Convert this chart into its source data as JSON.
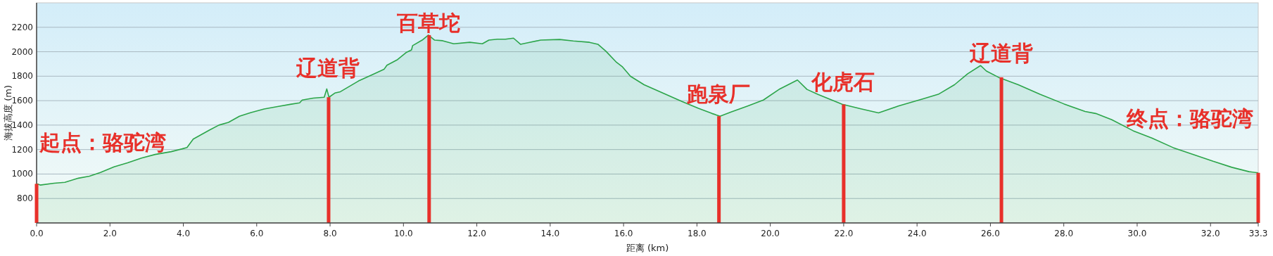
{
  "chart_data": {
    "type": "area",
    "xlabel": "距离 (km)",
    "ylabel": "海拔高度 (m)",
    "xlim": [
      0,
      33.3
    ],
    "ylim": [
      600,
      2400
    ],
    "xticks": [
      {
        "value": 0,
        "label": "0.0"
      },
      {
        "value": 2,
        "label": "2.0"
      },
      {
        "value": 4,
        "label": "4.0"
      },
      {
        "value": 6,
        "label": "6.0"
      },
      {
        "value": 8,
        "label": "8.0"
      },
      {
        "value": 10,
        "label": "10.0"
      },
      {
        "value": 12,
        "label": "12.0"
      },
      {
        "value": 14,
        "label": "14.0"
      },
      {
        "value": 16,
        "label": "16.0"
      },
      {
        "value": 18,
        "label": "18.0"
      },
      {
        "value": 20,
        "label": "20.0"
      },
      {
        "value": 22,
        "label": "22.0"
      },
      {
        "value": 24,
        "label": "24.0"
      },
      {
        "value": 26,
        "label": "26.0"
      },
      {
        "value": 28,
        "label": "28.0"
      },
      {
        "value": 30,
        "label": "30.0"
      },
      {
        "value": 32,
        "label": "32.0"
      },
      {
        "value": 33.3,
        "label": "33.3"
      }
    ],
    "yticks": [
      800,
      1000,
      1200,
      1400,
      1600,
      1800,
      2000,
      2200
    ],
    "grid": "y",
    "series": [
      {
        "color": "#2ca54a",
        "x": [
          0,
          0.1,
          0.48,
          0.77,
          1.14,
          1.44,
          1.74,
          2.11,
          2.48,
          2.86,
          3.23,
          3.67,
          3.97,
          4.1,
          4.27,
          4.71,
          4.97,
          5.23,
          5.53,
          5.83,
          6.2,
          6.57,
          6.94,
          7.17,
          7.24,
          7.54,
          7.84,
          7.91,
          7.97,
          8.13,
          8.28,
          8.8,
          9.17,
          9.47,
          9.55,
          9.84,
          10.07,
          10.22,
          10.25,
          10.51,
          10.68,
          10.85,
          11.07,
          11.37,
          11.81,
          12.15,
          12.33,
          12.56,
          12.78,
          13.0,
          13.19,
          13.37,
          13.74,
          14.26,
          14.63,
          15.07,
          15.3,
          15.52,
          15.81,
          15.96,
          16.19,
          16.56,
          17.07,
          17.59,
          18.04,
          18.41,
          18.63,
          18.93,
          19.37,
          19.81,
          20.26,
          20.74,
          21.0,
          21.3,
          21.96,
          22.47,
          22.95,
          23.49,
          24.15,
          24.58,
          25.02,
          25.38,
          25.73,
          25.89,
          26.22,
          26.76,
          27.35,
          28.0,
          28.58,
          28.87,
          29.31,
          29.89,
          30.4,
          30.98,
          31.49,
          32.07,
          32.58,
          33.05,
          33.3
        ],
        "values": [
          920,
          910,
          925,
          932,
          966,
          982,
          1012,
          1058,
          1092,
          1131,
          1160,
          1183,
          1206,
          1217,
          1286,
          1359,
          1400,
          1422,
          1473,
          1502,
          1532,
          1552,
          1571,
          1582,
          1605,
          1621,
          1628,
          1696,
          1628,
          1662,
          1673,
          1765,
          1815,
          1856,
          1890,
          1936,
          1993,
          2015,
          2050,
          2095,
          2136,
          2095,
          2090,
          2065,
          2077,
          2065,
          2095,
          2102,
          2102,
          2111,
          2061,
          2072,
          2095,
          2100,
          2088,
          2077,
          2061,
          2004,
          1913,
          1879,
          1799,
          1730,
          1662,
          1594,
          1537,
          1495,
          1473,
          1507,
          1555,
          1605,
          1696,
          1769,
          1692,
          1651,
          1571,
          1533,
          1500,
          1556,
          1614,
          1652,
          1730,
          1820,
          1887,
          1842,
          1791,
          1730,
          1652,
          1574,
          1511,
          1495,
          1444,
          1354,
          1294,
          1216,
          1164,
          1104,
          1055,
          1019,
          1010
        ]
      },
      {
        "type": "bar",
        "color": "#e8302a",
        "x": [
          0,
          7.96,
          10.7,
          18.6,
          22.0,
          26.3,
          33.3
        ],
        "values": [
          920,
          1628,
          2136,
          1473,
          1569,
          1791,
          1010
        ]
      }
    ],
    "annotations": [
      {
        "text": "起点：骆驼湾",
        "x": 0,
        "y": 920
      },
      {
        "text": "辽道背",
        "x": 7.96,
        "y": 1628
      },
      {
        "text": "百草坨",
        "x": 10.7,
        "y": 2136
      },
      {
        "text": "跑泉厂",
        "x": 18.6,
        "y": 1473
      },
      {
        "text": "化虎石",
        "x": 22.0,
        "y": 1569
      },
      {
        "text": "辽道背",
        "x": 26.3,
        "y": 1791
      },
      {
        "text": "终点：骆驼湾",
        "x": 33.3,
        "y": 1010
      }
    ]
  }
}
